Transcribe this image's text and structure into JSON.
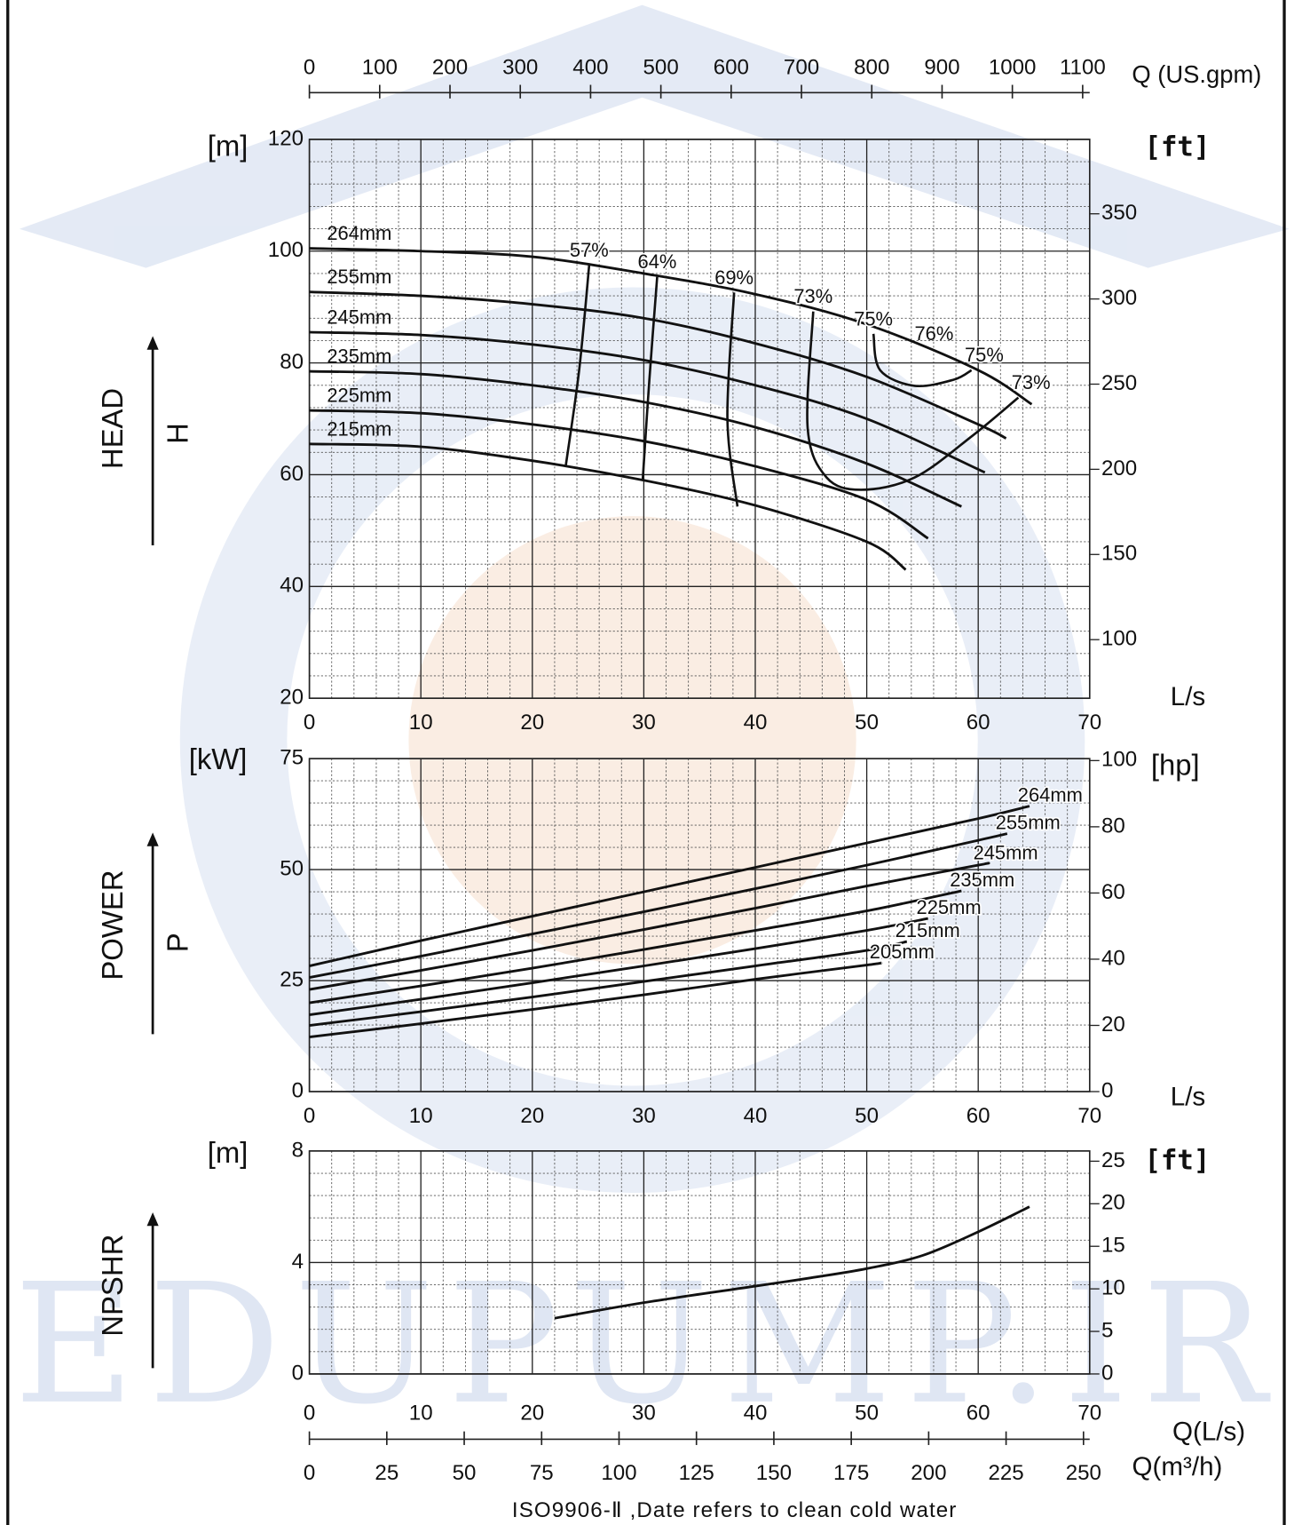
{
  "chart_data": [
    {
      "type": "line",
      "y_label": "[m]",
      "y2_label": "[ft]",
      "y_title": "HEAD",
      "y_symbol": "H",
      "x_label": "L/s",
      "xlim": [
        0,
        70
      ],
      "xticks": [
        0,
        10,
        20,
        30,
        40,
        50,
        60,
        70
      ],
      "ylim": [
        20,
        120
      ],
      "yticks": [
        20,
        40,
        60,
        80,
        100,
        120
      ],
      "y2lim": [
        65.6,
        393.7
      ],
      "y2ticks": [
        100,
        150,
        200,
        250,
        300,
        350
      ],
      "grid": true,
      "color": "#111111",
      "top_axis": {
        "label": "Q (US.gpm)",
        "xlim": [
          0,
          1110
        ],
        "xticks": [
          0,
          100,
          200,
          300,
          400,
          500,
          600,
          700,
          800,
          900,
          1000,
          1100
        ]
      },
      "series": [
        {
          "name": "264mm",
          "x": [
            0,
            10,
            20,
            30,
            40,
            50,
            60,
            64.8
          ],
          "values": [
            100.5,
            100,
            99,
            96,
            92.3,
            86.9,
            78.7,
            72.6
          ]
        },
        {
          "name": "255mm",
          "x": [
            0,
            10,
            20,
            30,
            40,
            50,
            60,
            62.5
          ],
          "values": [
            92.7,
            92,
            90.5,
            88,
            83.5,
            77.5,
            69,
            66.5
          ]
        },
        {
          "name": "245mm",
          "x": [
            0,
            10,
            20,
            30,
            40,
            50,
            60.6
          ],
          "values": [
            85.5,
            85,
            83.3,
            80.5,
            76,
            70,
            60.4
          ]
        },
        {
          "name": "235mm",
          "x": [
            0,
            10,
            20,
            30,
            40,
            50,
            58.5
          ],
          "values": [
            78.5,
            78,
            76,
            73,
            68.5,
            62,
            54.3
          ]
        },
        {
          "name": "225mm",
          "x": [
            0,
            10,
            20,
            30,
            40,
            50,
            55.5
          ],
          "values": [
            71.5,
            71,
            69,
            66,
            61.5,
            55.5,
            48.6
          ]
        },
        {
          "name": "215mm",
          "x": [
            0,
            10,
            20,
            30,
            40,
            50,
            53.5
          ],
          "values": [
            65.5,
            65,
            62.5,
            59,
            54.5,
            48,
            43
          ]
        }
      ],
      "efficiency_curves": [
        {
          "name": "57%",
          "x": [
            25.1,
            24.2,
            23.0
          ],
          "values": [
            97.5,
            78.7,
            61.6
          ]
        },
        {
          "name": "64%",
          "x": [
            31.2,
            30.5,
            29.9
          ],
          "values": [
            95.4,
            77,
            59
          ]
        },
        {
          "name": "69%",
          "x": [
            38.1,
            37.5,
            38.4
          ],
          "values": [
            92.6,
            70,
            54.3
          ]
        },
        {
          "name": "73%",
          "x": [
            45.2,
            44.7,
            46.4,
            49.5,
            54.3,
            59.5,
            63.6
          ],
          "values": [
            89.2,
            68.3,
            59.5,
            57.3,
            59.5,
            67,
            73.8
          ]
        },
        {
          "name": "75%",
          "x": [
            50.6,
            51.2,
            54.3,
            57.8,
            59.4
          ],
          "values": [
            85.2,
            78.7,
            75.9,
            77,
            78.7
          ]
        }
      ],
      "annotations": [
        "76%"
      ]
    },
    {
      "type": "line",
      "y_label": "[kW]",
      "y2_label": "[hp]",
      "y_title": "POWER",
      "y_symbol": "P",
      "x_label": "L/s",
      "xlim": [
        0,
        70
      ],
      "xticks": [
        0,
        10,
        20,
        30,
        40,
        50,
        60,
        70
      ],
      "ylim": [
        0,
        75
      ],
      "yticks": [
        0,
        25,
        50,
        75
      ],
      "y2lim": [
        0,
        100.6
      ],
      "y2ticks": [
        0,
        20,
        40,
        60,
        80,
        100
      ],
      "grid": true,
      "color": "#111111",
      "series": [
        {
          "name": "264mm",
          "x": [
            0,
            10,
            20,
            30,
            40,
            50,
            60,
            64.6
          ],
          "values": [
            28.3,
            34,
            39.5,
            45,
            50.5,
            56,
            61.5,
            64.3
          ]
        },
        {
          "name": "255mm",
          "x": [
            0,
            10,
            20,
            30,
            40,
            50,
            60,
            62.6
          ],
          "values": [
            25.7,
            30.5,
            35.5,
            40.5,
            45.7,
            51,
            56.6,
            58.1
          ]
        },
        {
          "name": "245mm",
          "x": [
            0,
            10,
            20,
            30,
            40,
            50,
            60,
            60.6
          ],
          "values": [
            23,
            27.3,
            31.8,
            36.5,
            41.3,
            46.3,
            51,
            51.3
          ]
        },
        {
          "name": "235mm",
          "x": [
            0,
            10,
            20,
            30,
            40,
            50,
            58.5
          ],
          "values": [
            20,
            23.8,
            27.8,
            32,
            36.3,
            40.7,
            45.2
          ]
        },
        {
          "name": "225mm",
          "x": [
            0,
            10,
            20,
            30,
            40,
            50,
            55.5
          ],
          "values": [
            17.3,
            20.8,
            24.5,
            28.3,
            32.2,
            36.3,
            39
          ]
        },
        {
          "name": "215mm",
          "x": [
            0,
            10,
            20,
            30,
            40,
            50,
            53.6
          ],
          "values": [
            14.9,
            18,
            21.3,
            24.8,
            28.3,
            31.8,
            33.8
          ]
        },
        {
          "name": "205mm",
          "x": [
            0,
            10,
            20,
            30,
            40,
            50,
            51.3
          ],
          "values": [
            12.3,
            15.3,
            18.5,
            21.8,
            25.3,
            28.5,
            29
          ]
        }
      ]
    },
    {
      "type": "line",
      "y_label": "[m]",
      "y2_label": "[ft]",
      "y_title": "NPSHR",
      "x_label": "Q(L/s)",
      "xlim": [
        0,
        70
      ],
      "xticks": [
        0,
        10,
        20,
        30,
        40,
        50,
        60,
        70
      ],
      "ylim": [
        0,
        8
      ],
      "yticks": [
        0,
        4,
        8
      ],
      "y2lim": [
        0,
        26.2
      ],
      "y2ticks": [
        0,
        5,
        10,
        15,
        20,
        25
      ],
      "grid": true,
      "color": "#111111",
      "bottom_axis": {
        "label": "Q(m³/h)",
        "xlim": [
          0,
          252
        ],
        "xticks": [
          0,
          25,
          50,
          75,
          100,
          125,
          150,
          175,
          200,
          225,
          250
        ]
      },
      "series": [
        {
          "x": [
            22,
            30,
            40,
            45,
            50,
            55,
            60,
            64.6
          ],
          "values": [
            2.0,
            2.56,
            3.15,
            3.45,
            3.78,
            4.25,
            5.1,
            6.0
          ]
        }
      ]
    }
  ],
  "watermark": "EDUPUMP.IR",
  "footer": "ISO9906-Ⅱ ,Date refers to clean cold water"
}
